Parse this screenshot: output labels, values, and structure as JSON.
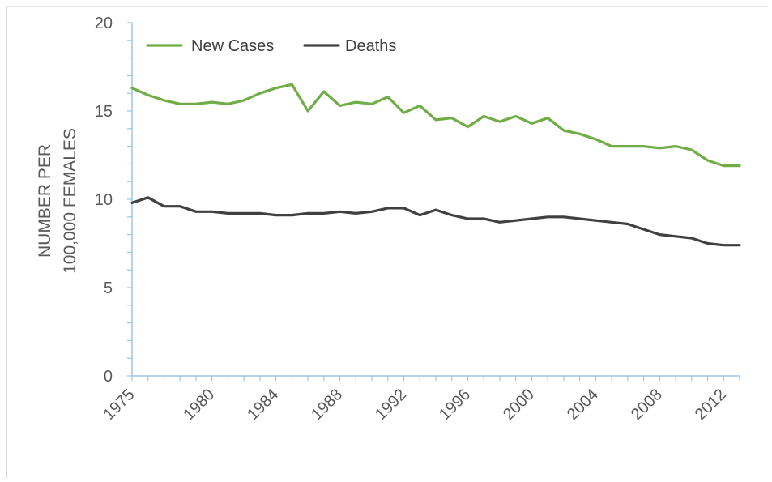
{
  "chart_data": {
    "type": "line",
    "ylabel": [
      "NUMBER PER",
      "100,000 FEMALES"
    ],
    "xlabel": "",
    "title": "",
    "ylim": [
      0,
      20
    ],
    "yticks": [
      0,
      5,
      10,
      15,
      20
    ],
    "xlim": [
      1975,
      2013
    ],
    "xticks": [
      1975,
      1980,
      1984,
      1988,
      1992,
      1996,
      2000,
      2004,
      2008,
      2012
    ],
    "legend_position": "top-left",
    "grid": false,
    "x": [
      1975,
      1976,
      1977,
      1978,
      1979,
      1980,
      1981,
      1982,
      1983,
      1984,
      1985,
      1986,
      1987,
      1988,
      1989,
      1990,
      1991,
      1992,
      1993,
      1994,
      1995,
      1996,
      1997,
      1998,
      1999,
      2000,
      2001,
      2002,
      2003,
      2004,
      2005,
      2006,
      2007,
      2008,
      2009,
      2010,
      2011,
      2012,
      2013
    ],
    "series": [
      {
        "name": "New Cases",
        "color": "#70ad47",
        "values": [
          16.3,
          15.9,
          15.6,
          15.4,
          15.4,
          15.5,
          15.4,
          15.6,
          16.0,
          16.3,
          16.5,
          15.0,
          16.1,
          15.3,
          15.5,
          15.4,
          15.8,
          14.9,
          15.3,
          14.5,
          14.6,
          14.1,
          14.7,
          14.4,
          14.7,
          14.3,
          14.6,
          13.9,
          13.7,
          13.4,
          13.0,
          13.0,
          13.0,
          12.9,
          13.0,
          12.8,
          12.2,
          11.9,
          11.9
        ]
      },
      {
        "name": "Deaths",
        "color": "#404040",
        "values": [
          9.8,
          10.1,
          9.6,
          9.6,
          9.3,
          9.3,
          9.2,
          9.2,
          9.2,
          9.1,
          9.1,
          9.2,
          9.2,
          9.3,
          9.2,
          9.3,
          9.5,
          9.5,
          9.1,
          9.4,
          9.1,
          8.9,
          8.9,
          8.7,
          8.8,
          8.9,
          9.0,
          9.0,
          8.9,
          8.8,
          8.7,
          8.6,
          8.3,
          8.0,
          7.9,
          7.8,
          7.5,
          7.4,
          7.4
        ]
      }
    ]
  }
}
